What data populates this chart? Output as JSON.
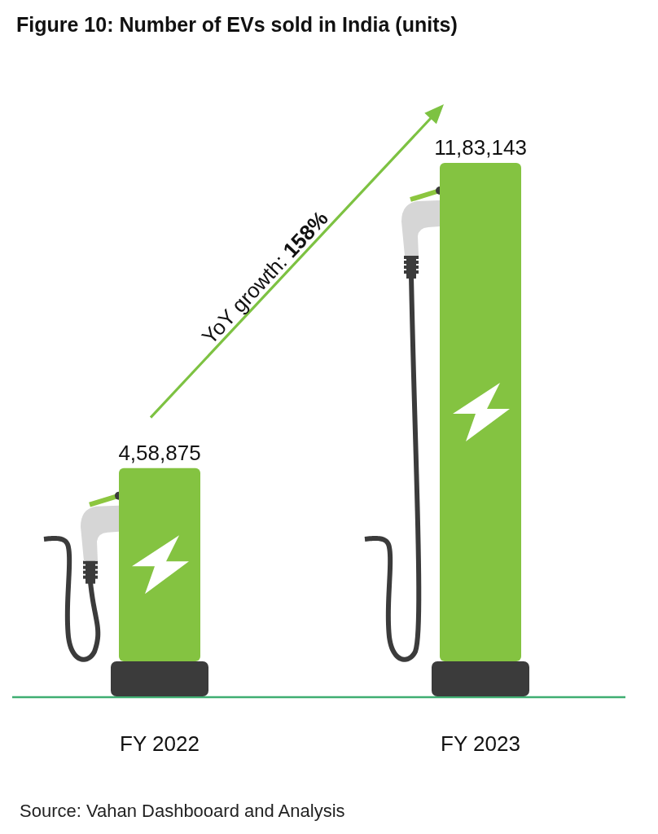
{
  "chart_data": {
    "type": "bar",
    "title": "Figure 10: Number of EVs sold in India (units)",
    "categories": [
      "FY 2022",
      "FY 2023"
    ],
    "values": [
      458875,
      1183143
    ],
    "color": "#84c341",
    "value_labels": [
      "4,58,875",
      "11,83,143"
    ],
    "annotations": [
      "YoY growth: 158%",
      "Source: Vahan Dashbooard and Analysis"
    ]
  }
}
